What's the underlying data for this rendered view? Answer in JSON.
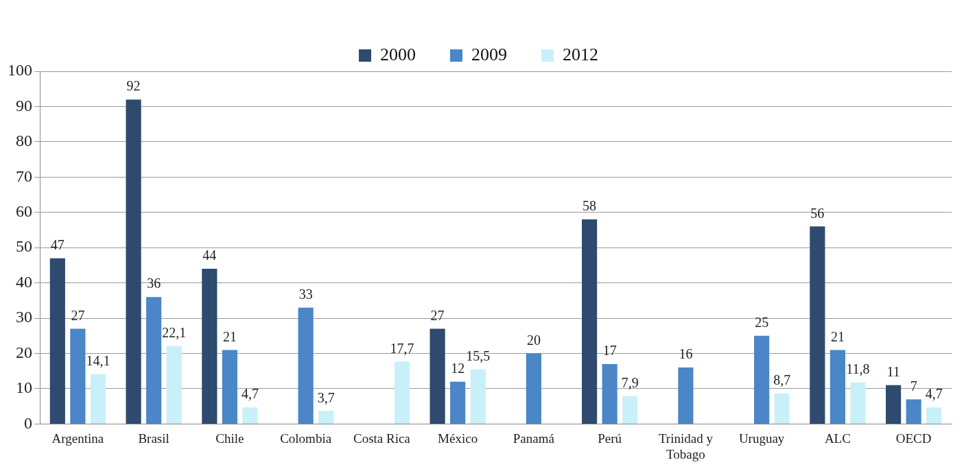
{
  "chart_data": {
    "type": "bar",
    "categories": [
      "Argentina",
      "Brasil",
      "Chile",
      "Colombia",
      "Costa Rica",
      "México",
      "Panamá",
      "Perú",
      "Trinidad y Tobago",
      "Uruguay",
      "ALC",
      "OECD"
    ],
    "series": [
      {
        "name": "2000",
        "color": "#2e4a6e",
        "values": [
          47,
          92,
          44,
          null,
          null,
          27,
          null,
          58,
          null,
          null,
          56,
          11
        ],
        "value_labels": [
          "47",
          "92",
          "44",
          null,
          null,
          "27",
          null,
          "58",
          null,
          null,
          "56",
          "11"
        ]
      },
      {
        "name": "2009",
        "color": "#4a86c8",
        "values": [
          27,
          36,
          21,
          33,
          null,
          12,
          20,
          17,
          16,
          25,
          21,
          7
        ],
        "value_labels": [
          "27",
          "36",
          "21",
          "33",
          null,
          "12",
          "20",
          "17",
          "16",
          "25",
          "21",
          "7"
        ]
      },
      {
        "name": "2012",
        "color": "#c8f0f8",
        "values": [
          14.1,
          22.1,
          4.7,
          3.7,
          17.7,
          15.5,
          null,
          7.9,
          null,
          8.7,
          11.8,
          4.7
        ],
        "value_labels": [
          "14,1",
          "22,1",
          "4,7",
          "3,7",
          "17,7",
          "15,5",
          null,
          "7,9",
          null,
          "8,7",
          "11,8",
          "4,7"
        ]
      }
    ],
    "ylim": [
      0,
      100
    ],
    "yticks": [
      0,
      10,
      20,
      30,
      40,
      50,
      60,
      70,
      80,
      90,
      100
    ],
    "grid": "y",
    "legend": "top"
  }
}
